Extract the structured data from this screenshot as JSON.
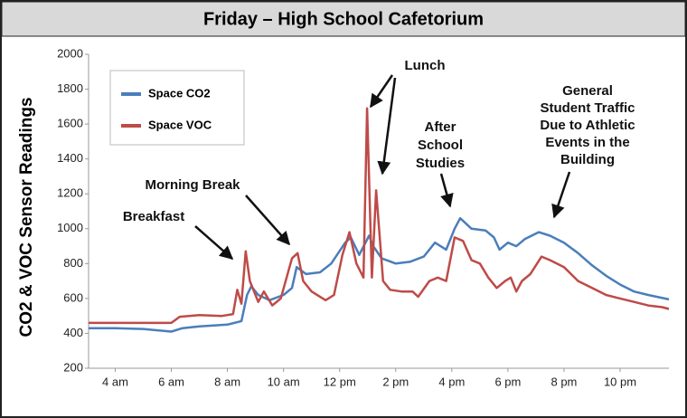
{
  "chart_data": {
    "type": "line",
    "title": "Friday – High School Cafetorium",
    "y_label": "CO2 & VOC Sensor Readings",
    "xlim": [
      3.05,
      23.74
    ],
    "xticks": [
      {
        "value": 4,
        "label": "4 am"
      },
      {
        "value": 6,
        "label": "6 am"
      },
      {
        "value": 8,
        "label": "8 am"
      },
      {
        "value": 10,
        "label": "10 am"
      },
      {
        "value": 12,
        "label": "12 pm"
      },
      {
        "value": 14,
        "label": "2 pm"
      },
      {
        "value": 16,
        "label": "4 pm"
      },
      {
        "value": 18,
        "label": "6 pm"
      },
      {
        "value": 20,
        "label": "8 pm"
      },
      {
        "value": 22,
        "label": "10 pm"
      }
    ],
    "ylim": [
      200,
      2000
    ],
    "yticks": [
      200,
      400,
      600,
      800,
      1000,
      1200,
      1400,
      1600,
      1800,
      2000
    ],
    "series": [
      {
        "name": "Space CO2",
        "color": "#4a7ebb",
        "x": [
          3.05,
          4,
          5,
          6,
          6.4,
          7,
          8,
          8.5,
          8.7,
          8.85,
          9.1,
          9.5,
          10,
          10.3,
          10.47,
          10.8,
          11.3,
          11.7,
          12.2,
          12.4,
          12.7,
          13.05,
          13.2,
          13.5,
          14,
          14.5,
          15,
          15.4,
          15.8,
          16.1,
          16.3,
          16.7,
          17.2,
          17.5,
          17.7,
          18,
          18.3,
          18.6,
          19.1,
          19.5,
          20,
          20.5,
          21,
          21.5,
          22,
          22.5,
          23,
          23.74
        ],
        "values": [
          430,
          430,
          425,
          410,
          430,
          440,
          450,
          470,
          620,
          670,
          620,
          590,
          620,
          660,
          780,
          740,
          750,
          800,
          920,
          950,
          850,
          960,
          900,
          830,
          800,
          810,
          840,
          920,
          880,
          1000,
          1060,
          1000,
          990,
          950,
          880,
          920,
          900,
          940,
          980,
          960,
          920,
          860,
          790,
          730,
          680,
          640,
          620,
          595
        ]
      },
      {
        "name": "Space VOC",
        "color": "#be4b48",
        "x": [
          3.05,
          6,
          6.3,
          7,
          7.8,
          8.2,
          8.35,
          8.5,
          8.65,
          8.8,
          9.1,
          9.3,
          9.6,
          9.9,
          10.3,
          10.5,
          10.7,
          11,
          11.5,
          11.8,
          12.1,
          12.35,
          12.6,
          12.85,
          12.98,
          13.15,
          13.3,
          13.55,
          13.8,
          14.2,
          14.6,
          14.8,
          15.2,
          15.5,
          15.8,
          16.1,
          16.4,
          16.7,
          17,
          17.3,
          17.6,
          17.9,
          18.1,
          18.3,
          18.5,
          18.8,
          19.2,
          19.5,
          20,
          20.5,
          21,
          21.5,
          22,
          22.5,
          23,
          23.5,
          23.74
        ],
        "values": [
          460,
          460,
          495,
          505,
          500,
          510,
          650,
          570,
          870,
          700,
          580,
          640,
          560,
          600,
          830,
          860,
          700,
          640,
          590,
          620,
          850,
          980,
          800,
          720,
          1690,
          720,
          1220,
          700,
          650,
          640,
          640,
          610,
          700,
          720,
          700,
          950,
          930,
          820,
          800,
          720,
          660,
          700,
          720,
          640,
          700,
          740,
          840,
          820,
          780,
          700,
          660,
          620,
          600,
          580,
          560,
          550,
          540
        ]
      }
    ],
    "annotations": [
      {
        "lines": [
          "Breakfast"
        ]
      },
      {
        "lines": [
          "Morning Break"
        ]
      },
      {
        "lines": [
          "Lunch"
        ]
      },
      {
        "lines": [
          "After",
          "School",
          "Studies"
        ]
      },
      {
        "lines": [
          "General",
          "Student Traffic",
          "Due to Athletic",
          "Events in the",
          "Building"
        ]
      }
    ]
  }
}
